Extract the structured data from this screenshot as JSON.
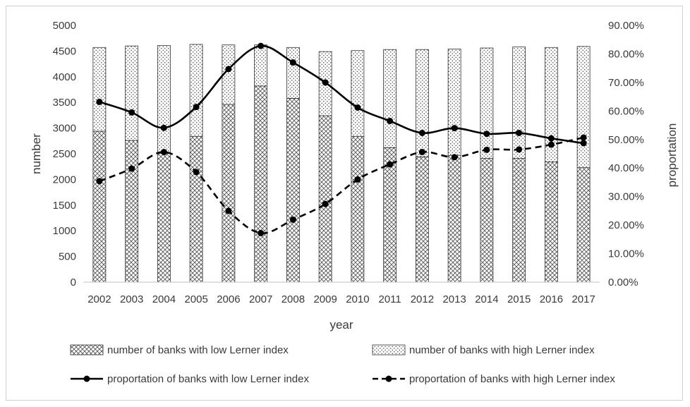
{
  "chart_data": {
    "type": "bar",
    "categories": [
      "2002",
      "2003",
      "2004",
      "2005",
      "2006",
      "2007",
      "2008",
      "2009",
      "2010",
      "2011",
      "2012",
      "2013",
      "2014",
      "2015",
      "2016",
      "2017"
    ],
    "series": [
      {
        "name": "number of banks with low Lerner index",
        "kind": "stacked-bar",
        "axis": "left",
        "values": [
          2940,
          2760,
          2510,
          2840,
          3460,
          3820,
          3580,
          3240,
          2840,
          2620,
          2440,
          2470,
          2410,
          2410,
          2340,
          2230
        ]
      },
      {
        "name": "number of banks with high Lerner index",
        "kind": "stacked-bar",
        "axis": "left",
        "values": [
          1630,
          1840,
          2100,
          1790,
          1160,
          800,
          990,
          1250,
          1670,
          1910,
          2090,
          2070,
          2150,
          2170,
          2230,
          2360
        ]
      },
      {
        "name": "proportation of banks with low Lerner index",
        "kind": "line",
        "axis": "right",
        "style": "solid",
        "values": [
          0.632,
          0.595,
          0.541,
          0.614,
          0.747,
          0.828,
          0.77,
          0.7,
          0.612,
          0.565,
          0.523,
          0.54,
          0.52,
          0.523,
          0.504,
          0.487
        ]
      },
      {
        "name": "proportation of banks with high Lerner index",
        "kind": "line",
        "axis": "right",
        "style": "dashed",
        "values": [
          0.354,
          0.398,
          0.456,
          0.386,
          0.25,
          0.172,
          0.219,
          0.274,
          0.36,
          0.413,
          0.456,
          0.438,
          0.464,
          0.465,
          0.482,
          0.507
        ]
      }
    ],
    "xlabel": "year",
    "ylabel": "number",
    "y2label": "proportation",
    "ylim": [
      0,
      5000
    ],
    "yticks": [
      0,
      500,
      1000,
      1500,
      2000,
      2500,
      3000,
      3500,
      4000,
      4500,
      5000
    ],
    "y2lim": [
      0,
      0.9
    ],
    "y2ticks": [
      "0.00%",
      "10.00%",
      "20.00%",
      "30.00%",
      "40.00%",
      "50.00%",
      "60.00%",
      "70.00%",
      "80.00%",
      "90.00%"
    ],
    "grid": false,
    "legend": "bottom"
  }
}
